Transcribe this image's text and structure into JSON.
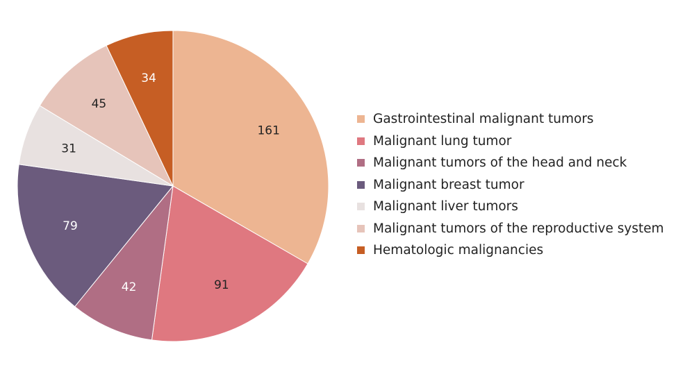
{
  "chart_data": {
    "type": "pie",
    "title": "",
    "categories": [
      "Gastrointestinal malignant tumors",
      "Malignant lung tumor",
      "Malignant tumors of the head and neck",
      "Malignant breast tumor",
      "Malignant liver tumors",
      "Malignant tumors of the reproductive system",
      "Hematologic malignancies"
    ],
    "values": [
      161,
      91,
      42,
      79,
      31,
      45,
      34
    ],
    "colors": [
      "#EDB592",
      "#DF7880",
      "#B06E84",
      "#6B5B7D",
      "#E8E1E0",
      "#E6C4BA",
      "#C65E24"
    ],
    "label_colors": [
      "#222222",
      "#222222",
      "#ffffff",
      "#ffffff",
      "#222222",
      "#222222",
      "#ffffff"
    ],
    "legend_position": "right",
    "start_angle_deg": 0,
    "direction": "clockwise"
  }
}
